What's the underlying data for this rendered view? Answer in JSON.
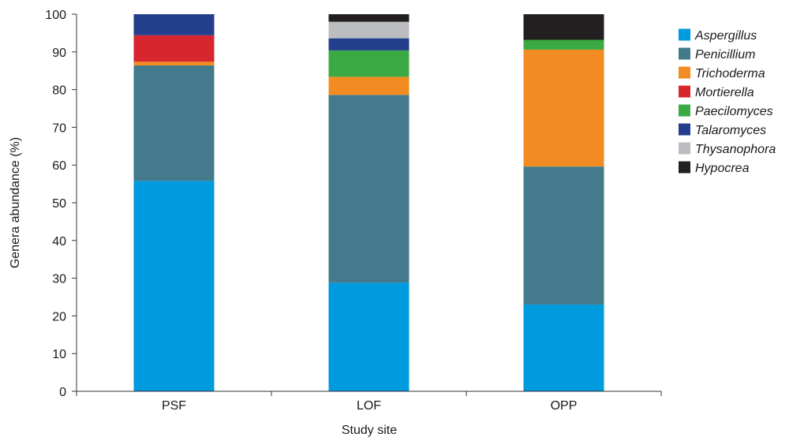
{
  "chart_data": {
    "type": "bar",
    "stacked": true,
    "title": "",
    "xlabel": "Study site",
    "ylabel": "Genera abundance (%)",
    "ylim": [
      0,
      100
    ],
    "yticks": [
      0,
      10,
      20,
      30,
      40,
      50,
      60,
      70,
      80,
      90,
      100
    ],
    "categories": [
      "PSF",
      "LOF",
      "OPP"
    ],
    "legend_position": "right",
    "grid": false,
    "series": [
      {
        "name": "Aspergillus",
        "color": "#009ADE",
        "values": [
          55.8,
          28.8,
          23.0
        ]
      },
      {
        "name": "Penicillium",
        "color": "#437B8D",
        "values": [
          30.6,
          49.8,
          36.6
        ]
      },
      {
        "name": "Trichoderma",
        "color": "#F28C22",
        "values": [
          1.0,
          4.8,
          31.0
        ]
      },
      {
        "name": "Mortierella",
        "color": "#D7262E",
        "values": [
          7.0,
          0.0,
          0.0
        ]
      },
      {
        "name": "Paecilomyces",
        "color": "#3BAA45",
        "values": [
          0.0,
          7.0,
          2.6
        ]
      },
      {
        "name": "Talaromyces",
        "color": "#233E8C",
        "values": [
          5.6,
          3.2,
          0.0
        ]
      },
      {
        "name": "Thysanophora",
        "color": "#BCBDC0",
        "values": [
          0.0,
          4.4,
          0.0
        ]
      },
      {
        "name": "Hypocrea",
        "color": "#231F20",
        "values": [
          0.0,
          2.0,
          6.8
        ]
      }
    ]
  }
}
